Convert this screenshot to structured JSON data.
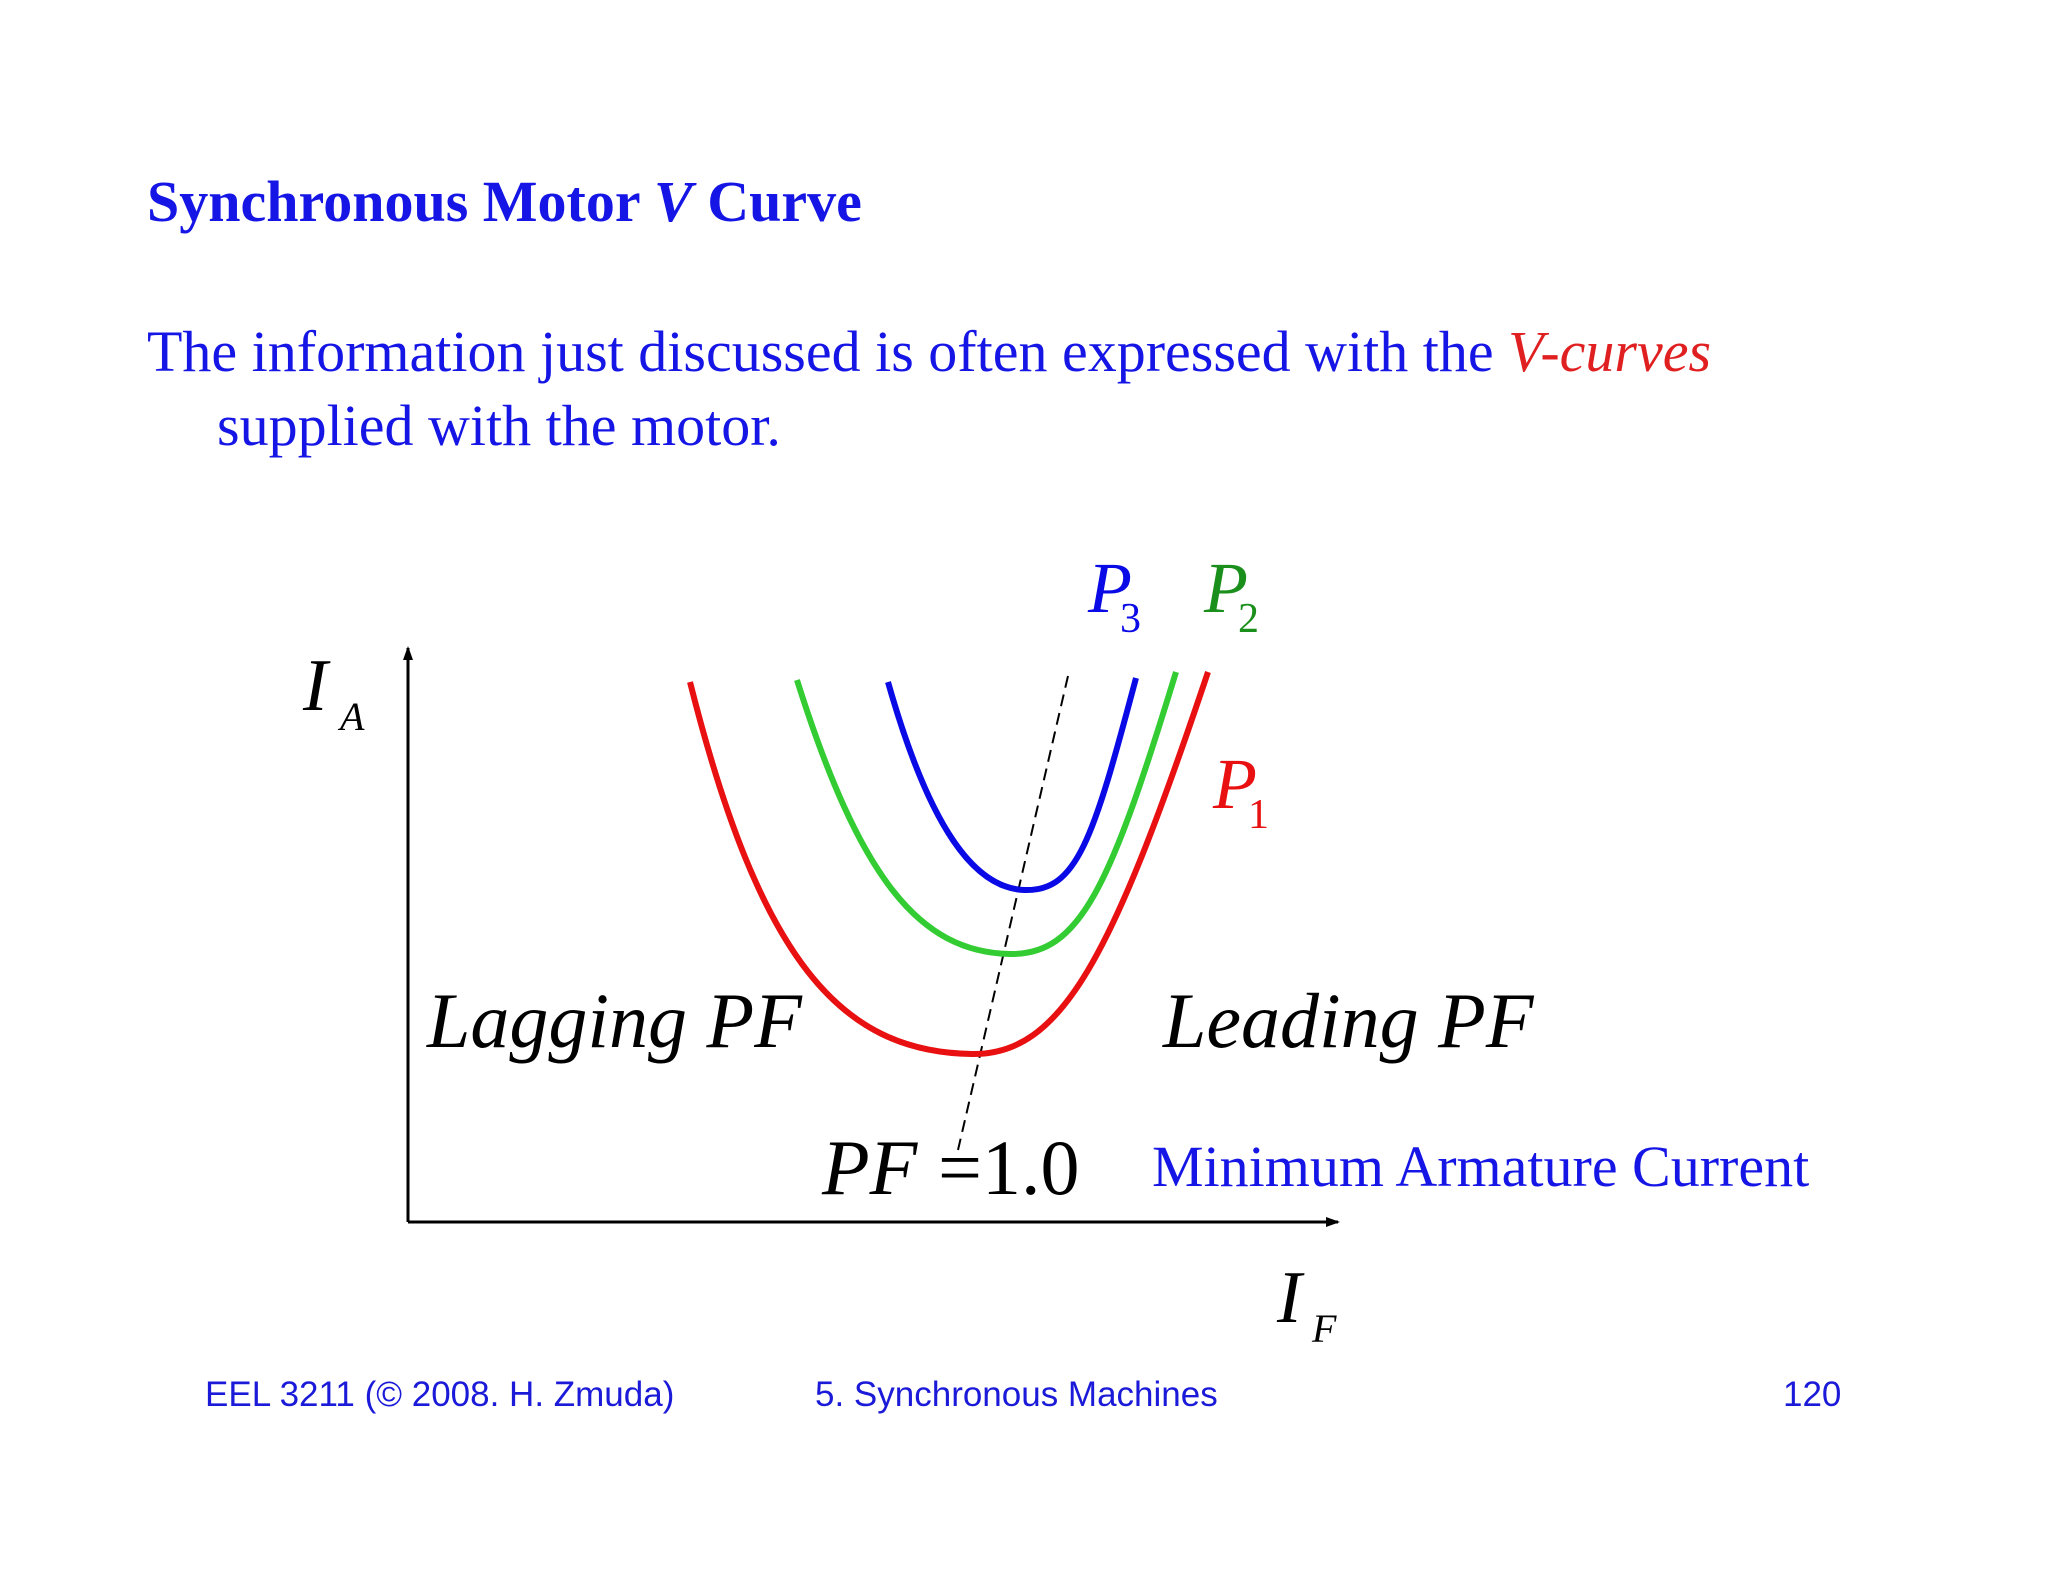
{
  "title": {
    "part1": "Synchronous Motor ",
    "part2": "V",
    "part3": " Curve"
  },
  "body": {
    "text_before": "The information just discussed is often expressed with the ",
    "highlight": "V-curves",
    "text_after": "supplied with the motor."
  },
  "diagram": {
    "y_axis_label": "I",
    "y_axis_sub": "A",
    "x_axis_label": "I",
    "x_axis_sub": "F",
    "curves": [
      {
        "label": "P",
        "sub": "3",
        "color": "#0a0ae6"
      },
      {
        "label": "P",
        "sub": "2",
        "color": "#1b8f1b",
        "line_color": "#33cc33"
      },
      {
        "label": "P",
        "sub": "1",
        "color": "#e81010"
      }
    ],
    "lagging_label": "Lagging PF",
    "leading_label": "Leading PF",
    "pf_label": "PF",
    "pf_eq": "=1.0",
    "min_current_label": "Minimum Armature Current"
  },
  "footer": {
    "course": "EEL 3211 (© 2008. H. Zmuda)",
    "chapter": "5. Synchronous Machines",
    "page": "120"
  }
}
